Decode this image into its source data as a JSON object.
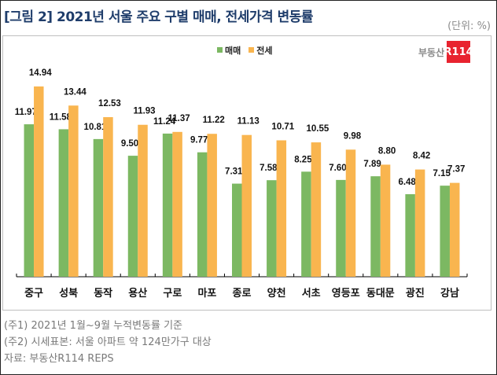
{
  "header": {
    "title": "[그림 2] 2021년 서울 주요 구별 매매, 전세가격 변동률",
    "unit": "(단위: %)"
  },
  "logo": {
    "text": "부동산",
    "badge": "R114"
  },
  "colors": {
    "sale": "#7cb862",
    "jeonse": "#f9b54f",
    "title": "#1f3d6b",
    "logo_red": "#e8232f"
  },
  "chart_data": {
    "type": "bar",
    "title": "2021년 서울 주요 구별 매매, 전세가격 변동률",
    "xlabel": "",
    "ylabel": "",
    "ylim": [
      0,
      15
    ],
    "grid": false,
    "legend_position": "top-center",
    "categories": [
      "중구",
      "성북",
      "동작",
      "용산",
      "구로",
      "마포",
      "종로",
      "양천",
      "서초",
      "영등포",
      "동대문",
      "광진",
      "강남"
    ],
    "series": [
      {
        "name": "매매",
        "color": "#7cb862",
        "values": [
          11.97,
          11.58,
          10.81,
          9.5,
          11.24,
          9.77,
          7.31,
          7.58,
          8.25,
          7.6,
          7.89,
          6.48,
          7.15
        ],
        "labels": [
          "11.97",
          "11.58",
          "10.81",
          "9.50",
          "11.24",
          "9.77",
          "7.31",
          "7.58",
          "8.25",
          "7.60",
          "7.89",
          "6.48",
          "7.15"
        ]
      },
      {
        "name": "전세",
        "color": "#f9b54f",
        "values": [
          14.94,
          13.44,
          12.53,
          11.93,
          11.37,
          11.22,
          11.13,
          10.71,
          10.55,
          9.98,
          8.8,
          8.42,
          7.37
        ],
        "labels": [
          "14.94",
          "13.44",
          "12.53",
          "11.93",
          "11.37",
          "11.22",
          "11.13",
          "10.71",
          "10.55",
          "9.98",
          "8.80",
          "8.42",
          "7.37"
        ]
      }
    ]
  },
  "notes": [
    "(주1) 2021년 1월~9월 누적변동률 기준",
    "(주2) 시세표본: 서울 아파트 약 124만가구 대상",
    "자료: 부동산R114 REPS"
  ]
}
